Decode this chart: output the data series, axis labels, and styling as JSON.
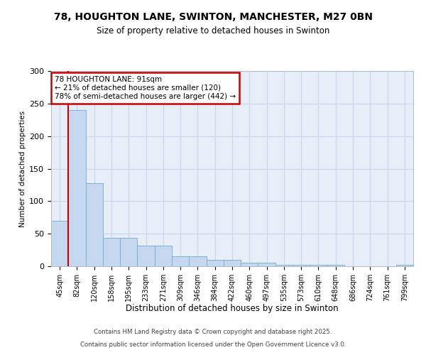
{
  "title1": "78, HOUGHTON LANE, SWINTON, MANCHESTER, M27 0BN",
  "title2": "Size of property relative to detached houses in Swinton",
  "xlabel": "Distribution of detached houses by size in Swinton",
  "ylabel": "Number of detached properties",
  "categories": [
    "45sqm",
    "82sqm",
    "120sqm",
    "158sqm",
    "195sqm",
    "233sqm",
    "271sqm",
    "309sqm",
    "346sqm",
    "384sqm",
    "422sqm",
    "460sqm",
    "497sqm",
    "535sqm",
    "573sqm",
    "610sqm",
    "648sqm",
    "686sqm",
    "724sqm",
    "761sqm",
    "799sqm"
  ],
  "values": [
    70,
    240,
    128,
    44,
    44,
    32,
    32,
    15,
    15,
    10,
    10,
    5,
    5,
    2,
    2,
    2,
    2,
    0,
    0,
    0,
    2
  ],
  "bar_color": "#c5d8f0",
  "bar_edge_color": "#7ab0d8",
  "grid_color": "#c8d4e8",
  "bg_color": "#ffffff",
  "plot_bg_color": "#e8eef8",
  "red_line_index": 1,
  "red_line_color": "#cc0000",
  "annotation_text": "78 HOUGHTON LANE: 91sqm\n← 21% of detached houses are smaller (120)\n78% of semi-detached houses are larger (442) →",
  "footer1": "Contains HM Land Registry data © Crown copyright and database right 2025.",
  "footer2": "Contains public sector information licensed under the Open Government Licence v3.0.",
  "ylim": [
    0,
    300
  ],
  "yticks": [
    0,
    50,
    100,
    150,
    200,
    250,
    300
  ]
}
